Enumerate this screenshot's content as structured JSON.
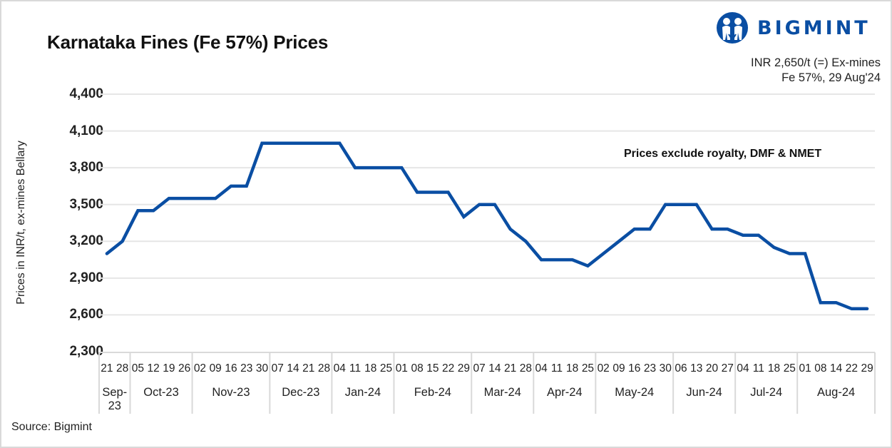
{
  "header": {
    "title": "Karnataka Fines (Fe 57%) Prices",
    "brand": "BIGMINT",
    "headline_line1": "INR 2,650/t (=) Ex-mines",
    "headline_line2": "Fe 57%, 29 Aug'24"
  },
  "annotation": "Prices exclude royalty, DMF & NMET",
  "footer": {
    "source": "Source: Bigmint"
  },
  "colors": {
    "line": "#0a4ea3",
    "grid": "#e6e6e6",
    "axis_box": "#d9d9d9",
    "brand": "#0a4ea3"
  },
  "axis": {
    "ylabel": "Prices in INR/t, ex-mines Bellary",
    "yticks": [
      "4,400",
      "4,100",
      "3,800",
      "3,500",
      "3,200",
      "2,900",
      "2,600",
      "2,300"
    ]
  },
  "chart_data": {
    "type": "line",
    "title": "Karnataka Fines (Fe 57%) Prices",
    "xlabel": "",
    "ylabel": "Prices in INR/t, ex-mines Bellary",
    "ylim": [
      2300,
      4400
    ],
    "yticks": [
      2300,
      2600,
      2900,
      3200,
      3500,
      3800,
      4100,
      4400
    ],
    "grid": true,
    "legend": null,
    "annotations": [
      "Prices exclude royalty, DMF & NMET",
      "INR 2,650/t (=) Ex-mines",
      "Fe 57%, 29 Aug'24"
    ],
    "months": [
      {
        "label": "Sep-23",
        "days": [
          "21",
          "28"
        ]
      },
      {
        "label": "Oct-23",
        "days": [
          "05",
          "12",
          "19",
          "26"
        ]
      },
      {
        "label": "Nov-23",
        "days": [
          "02",
          "09",
          "16",
          "23",
          "30"
        ]
      },
      {
        "label": "Dec-23",
        "days": [
          "07",
          "14",
          "21",
          "28"
        ]
      },
      {
        "label": "Jan-24",
        "days": [
          "04",
          "11",
          "18",
          "25"
        ]
      },
      {
        "label": "Feb-24",
        "days": [
          "01",
          "08",
          "15",
          "22",
          "29"
        ]
      },
      {
        "label": "Mar-24",
        "days": [
          "07",
          "14",
          "21",
          "28"
        ]
      },
      {
        "label": "Apr-24",
        "days": [
          "04",
          "11",
          "18",
          "25"
        ]
      },
      {
        "label": "May-24",
        "days": [
          "02",
          "09",
          "16",
          "23",
          "30"
        ]
      },
      {
        "label": "Jun-24",
        "days": [
          "06",
          "13",
          "20",
          "27"
        ]
      },
      {
        "label": "Jul-24",
        "days": [
          "04",
          "11",
          "18",
          "25"
        ]
      },
      {
        "label": "Aug-24",
        "days": [
          "01",
          "08",
          "14",
          "22",
          "29"
        ]
      }
    ],
    "series": [
      {
        "name": "Karnataka Fines Fe 57% (INR/t)",
        "values": [
          3100,
          3200,
          3450,
          3450,
          3550,
          3550,
          3550,
          3550,
          3650,
          3650,
          4000,
          4000,
          4000,
          4000,
          4000,
          4000,
          3800,
          3800,
          3800,
          3800,
          3600,
          3600,
          3600,
          3400,
          3500,
          3500,
          3300,
          3200,
          3050,
          3050,
          3050,
          3000,
          3100,
          3200,
          3300,
          3300,
          3500,
          3500,
          3500,
          3300,
          3300,
          3250,
          3250,
          3150,
          3100,
          3100,
          2700,
          2700,
          2650,
          2650
        ]
      }
    ]
  }
}
